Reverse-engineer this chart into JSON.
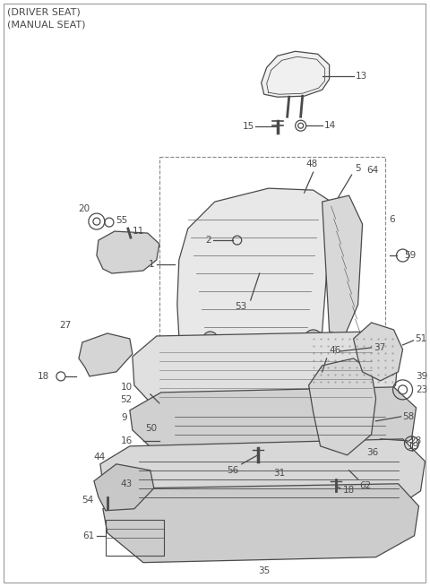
{
  "title_line1": "(DRIVER SEAT)",
  "title_line2": "(MANUAL SEAT)",
  "bg_color": "#ffffff",
  "line_color": "#4a4a4a",
  "text_color": "#4a4a4a",
  "title_fontsize": 7.5,
  "label_fontsize": 7.5,
  "fig_width": 4.8,
  "fig_height": 6.55,
  "dpi": 100
}
